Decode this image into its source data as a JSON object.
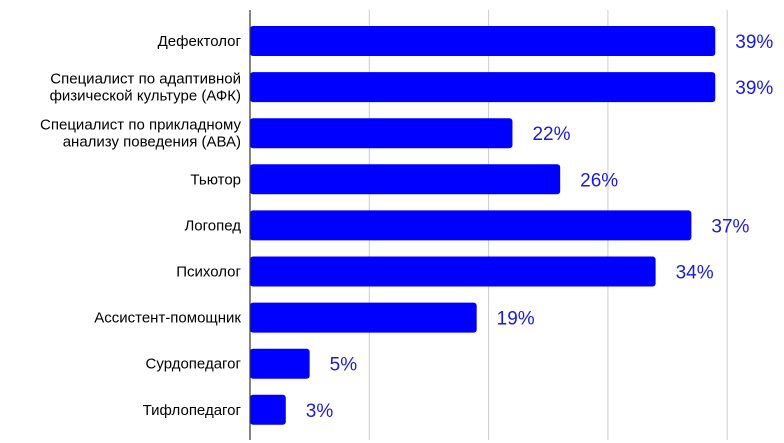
{
  "chart_data": {
    "type": "bar",
    "orientation": "horizontal",
    "categories": [
      [
        "Дефектолог"
      ],
      [
        "Специалист по адаптивной",
        "физической культуре (АФК)"
      ],
      [
        "Специалист по прикладному",
        "анализу поведения (АВА)"
      ],
      [
        "Тьютор"
      ],
      [
        "Логопед"
      ],
      [
        "Психолог"
      ],
      [
        "Ассистент-помощник"
      ],
      [
        "Сурдопедагог"
      ],
      [
        "Тифлопедагог"
      ]
    ],
    "values": [
      39,
      39,
      22,
      26,
      37,
      34,
      19,
      5,
      3
    ],
    "value_labels": [
      "39%",
      "39%",
      "22%",
      "26%",
      "37%",
      "34%",
      "19%",
      "5%",
      "3%"
    ],
    "xlim": [
      0,
      40
    ],
    "x_gridlines": [
      0,
      10,
      20,
      30,
      40
    ],
    "grid": true,
    "legend": false,
    "colors": {
      "bar": "#0000ff",
      "value_label": "#1a1adb",
      "grid": "#cccccc",
      "axis": "#333333",
      "text": "#000000"
    }
  }
}
